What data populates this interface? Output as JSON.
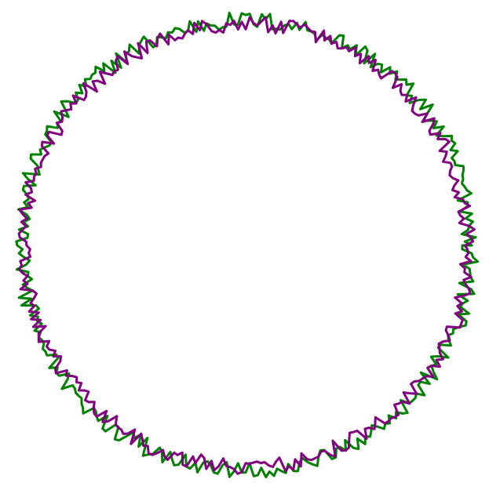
{
  "chart_data": {
    "type": "line",
    "title": "",
    "xlabel": "",
    "ylabel": "",
    "axes_visible": false,
    "grid": false,
    "legend": "none",
    "series": [
      {
        "color": "#008000",
        "r_mean": 1.0,
        "r_noise_amplitude": 0.04,
        "points": 360
      },
      {
        "color": "#800080",
        "r_mean": 0.985,
        "r_noise_amplitude": 0.035,
        "points": 360
      }
    ]
  }
}
